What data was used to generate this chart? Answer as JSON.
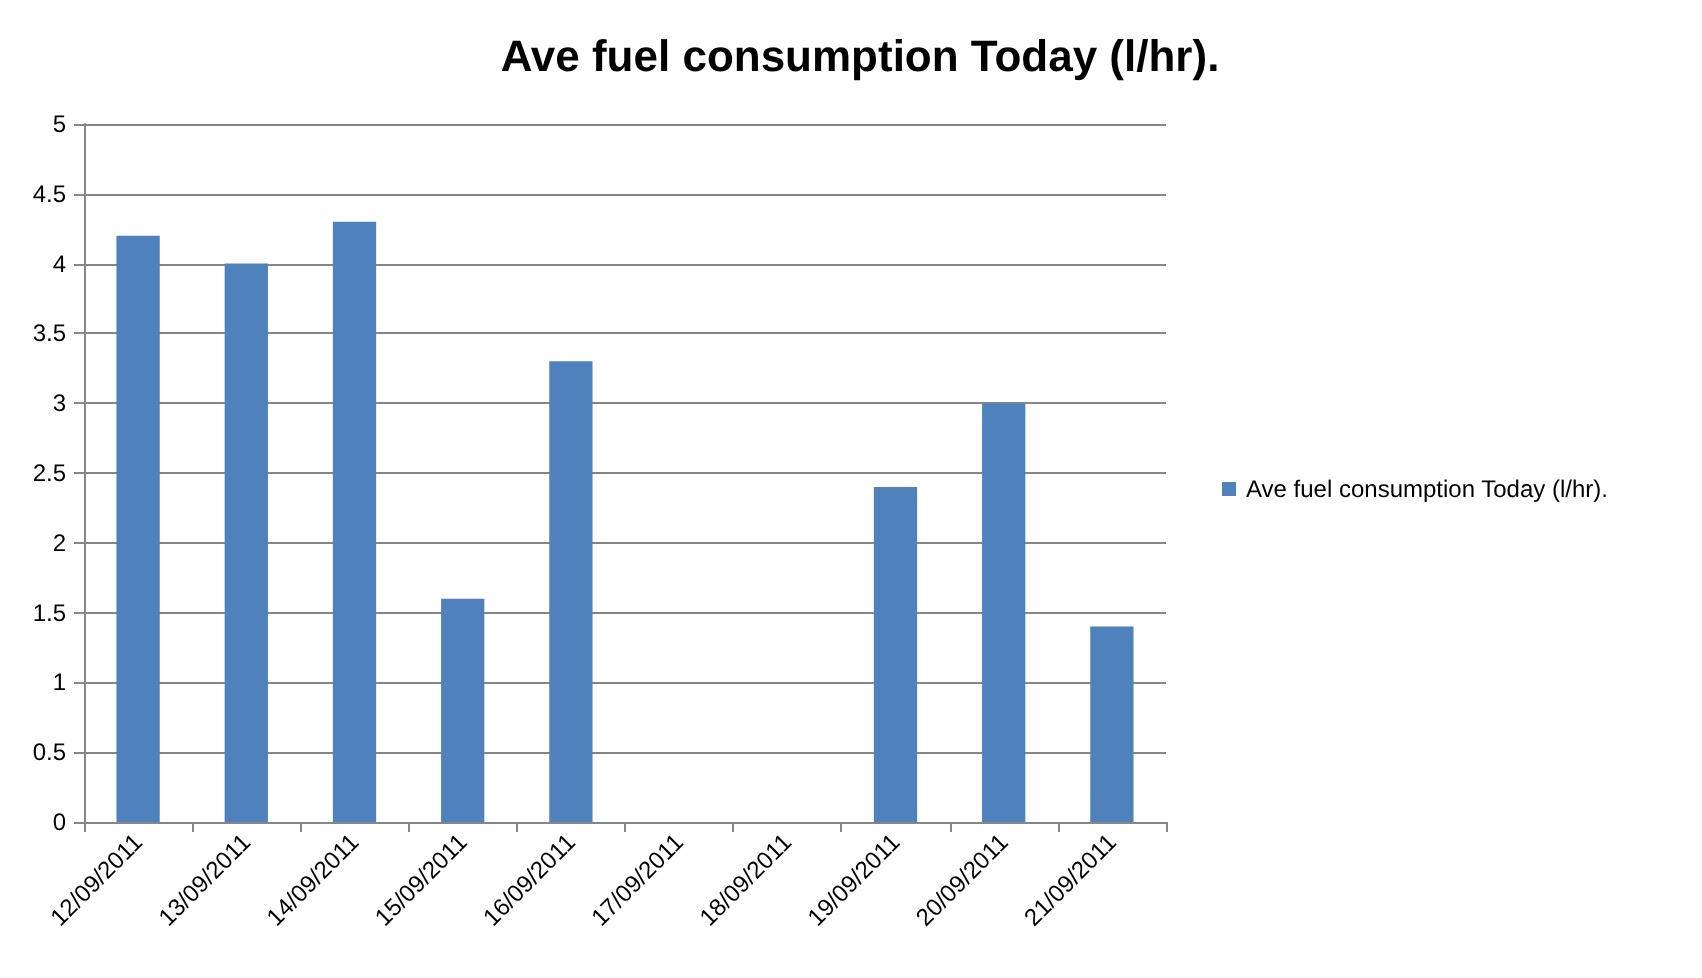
{
  "chart_data": {
    "type": "bar",
    "title": "Ave fuel consumption Today (l/hr).",
    "categories": [
      "12/09/2011",
      "13/09/2011",
      "14/09/2011",
      "15/09/2011",
      "16/09/2011",
      "17/09/2011",
      "18/09/2011",
      "19/09/2011",
      "20/09/2011",
      "21/09/2011"
    ],
    "series": [
      {
        "name": "Ave fuel consumption Today (l/hr).",
        "color": "#4f81bd",
        "values": [
          4.2,
          4.0,
          4.3,
          1.6,
          3.3,
          null,
          null,
          2.4,
          3.0,
          1.4
        ]
      }
    ],
    "ylim": [
      0,
      5
    ],
    "yticks": [
      0,
      0.5,
      1,
      1.5,
      2,
      2.5,
      3,
      3.5,
      4,
      4.5,
      5
    ],
    "grid": "y",
    "legend": "right"
  }
}
